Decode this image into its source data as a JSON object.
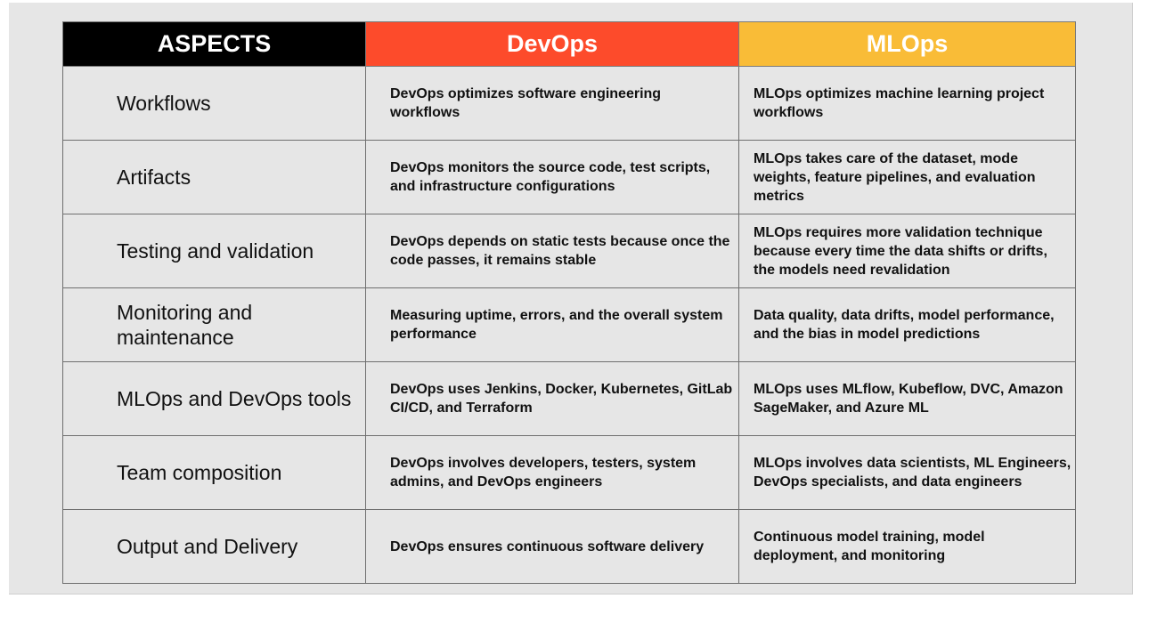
{
  "headers": {
    "aspects": "ASPECTS",
    "devops": "DevOps",
    "mlops": "MLOps"
  },
  "colors": {
    "aspects_header": "#000000",
    "devops_header": "#fd4b2b",
    "mlops_header": "#f9bc37",
    "background": "#e6e6e6"
  },
  "rows": [
    {
      "aspect": "Workflows",
      "devops": "DevOps optimizes software engineering workflows",
      "mlops": "MLOps optimizes machine learning project workflows"
    },
    {
      "aspect": "Artifacts",
      "devops": "DevOps monitors the source code, test scripts, and infrastructure configurations",
      "mlops": "MLOps takes care of the dataset, mode weights, feature pipelines, and evaluation metrics"
    },
    {
      "aspect": "Testing and validation",
      "devops": "DevOps depends on static tests because once the code passes, it remains stable",
      "mlops": "MLOps requires more validation technique because every time the data shifts or drifts, the models need revalidation"
    },
    {
      "aspect": "Monitoring and maintenance",
      "devops": "Measuring uptime, errors, and the overall system performance",
      "mlops": "Data quality, data drifts, model performance, and the bias in model predictions"
    },
    {
      "aspect": "MLOps and DevOps tools",
      "devops": "DevOps uses Jenkins, Docker, Kubernetes, GitLab CI/CD, and Terraform",
      "mlops": "MLOps uses MLflow, Kubeflow, DVC, Amazon SageMaker, and Azure ML"
    },
    {
      "aspect": "Team composition",
      "devops": "DevOps involves developers, testers, system admins, and DevOps engineers",
      "mlops": "MLOps involves data scientists, ML Engineers, DevOps specialists, and data engineers"
    },
    {
      "aspect": "Output and Delivery",
      "devops": "DevOps ensures continuous software delivery",
      "mlops": "Continuous model training, model deployment, and monitoring"
    }
  ]
}
